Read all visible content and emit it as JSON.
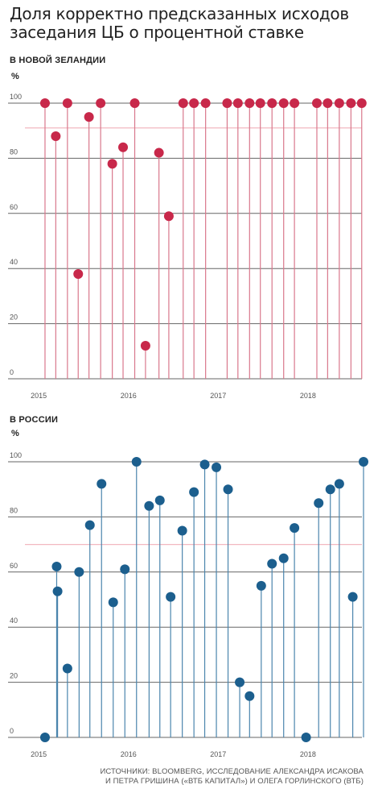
{
  "title": "Доля корректно предсказанных исходов заседания ЦБ о процентной ставке",
  "colors": {
    "nz_series": "#c8284a",
    "nz_stem": "#d9788c",
    "nz_reference": "#f2b8c0",
    "ru_series": "#1c5f8e",
    "ru_stem": "#4b85ad",
    "ru_reference": "#f2b8c0",
    "gridline": "#666666",
    "text": "#222222"
  },
  "chart_data": [
    {
      "type": "scatter",
      "subtype": "lollipop",
      "title": "В НОВОЙ ЗЕЛАНДИИ",
      "ylabel": "%",
      "xlabel": "",
      "ylim": [
        0,
        100
      ],
      "yticks": [
        "0",
        "20",
        "40",
        "60",
        "80",
        "100"
      ],
      "ytick_values": [
        0,
        20,
        40,
        60,
        80,
        100
      ],
      "xlim": [
        2014.9,
        2018.62
      ],
      "xticks": [
        "2015",
        "2016",
        "2017",
        "2018"
      ],
      "xtick_values": [
        2015,
        2016,
        2017,
        2018
      ],
      "reference_line": 91,
      "grid": true,
      "x": [
        2015.07,
        2015.19,
        2015.32,
        2015.44,
        2015.56,
        2015.69,
        2015.82,
        2015.94,
        2016.07,
        2016.19,
        2016.34,
        2016.45,
        2016.61,
        2016.73,
        2016.86,
        2017.1,
        2017.22,
        2017.35,
        2017.47,
        2017.6,
        2017.73,
        2017.85,
        2018.1,
        2018.22,
        2018.35,
        2018.48,
        2018.6
      ],
      "values": [
        100,
        88,
        100,
        38,
        95,
        100,
        78,
        84,
        100,
        12,
        82,
        59,
        100,
        100,
        100,
        100,
        100,
        100,
        100,
        100,
        100,
        100,
        100,
        100,
        100,
        100,
        100
      ]
    },
    {
      "type": "scatter",
      "subtype": "lollipop",
      "title": "В РОССИИ",
      "ylabel": "%",
      "xlabel": "",
      "ylim": [
        0,
        100
      ],
      "yticks": [
        "0",
        "20",
        "40",
        "60",
        "80",
        "100"
      ],
      "ytick_values": [
        0,
        20,
        40,
        60,
        80,
        100
      ],
      "xlim": [
        2014.9,
        2018.62
      ],
      "xticks": [
        "2015",
        "2016",
        "2017",
        "2018"
      ],
      "xtick_values": [
        2015,
        2016,
        2017,
        2018
      ],
      "reference_line": 70,
      "grid": true,
      "x": [
        2015.07,
        2015.2,
        2015.21,
        2015.32,
        2015.45,
        2015.57,
        2015.7,
        2015.83,
        2015.96,
        2016.09,
        2016.23,
        2016.35,
        2016.47,
        2016.6,
        2016.73,
        2016.85,
        2016.98,
        2017.11,
        2017.24,
        2017.35,
        2017.48,
        2017.6,
        2017.73,
        2017.85,
        2017.98,
        2018.12,
        2018.25,
        2018.35,
        2018.5,
        2018.62
      ],
      "values": [
        0,
        62,
        53,
        25,
        60,
        77,
        92,
        49,
        61,
        100,
        84,
        86,
        51,
        75,
        89,
        99,
        98,
        90,
        20,
        15,
        55,
        63,
        65,
        76,
        0,
        85,
        90,
        92,
        51,
        100
      ]
    }
  ],
  "source": {
    "line1": "ИСТОЧНИКИ: BLOOMBERG, ИССЛЕДОВАНИЕ АЛЕКСАНДРА ИСАКОВА",
    "line2": "И ПЕТРА ГРИШИНА («ВТБ КАПИТАЛ») И ОЛЕГА ГОРЛИНСКОГО (ВТБ)"
  }
}
